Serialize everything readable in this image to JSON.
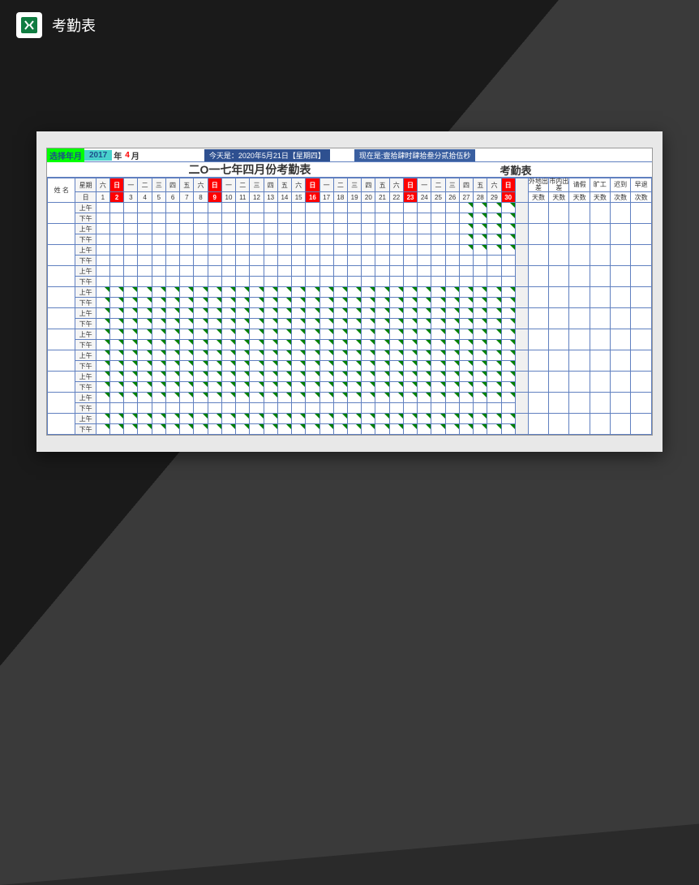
{
  "header": {
    "title": "考勤表"
  },
  "topbar": {
    "select_label": "选择年月",
    "year": "2017",
    "year_suffix": "年",
    "month": "4",
    "month_suffix": "月",
    "today": "今天是：2020年5月21日【星期四】",
    "now": "现在是:壹拾肆时肆拾叁分贰拾伍秒"
  },
  "titles": {
    "main": "二O一七年四月份考勤表",
    "sub": "考勤表"
  },
  "grid": {
    "name_header": "姓 名",
    "week_header": "星期",
    "day_header": "日",
    "weekdays": [
      "六",
      "日",
      "一",
      "二",
      "三",
      "四",
      "五",
      "六",
      "日",
      "一",
      "二",
      "三",
      "四",
      "五",
      "六",
      "日",
      "一",
      "二",
      "三",
      "四",
      "五",
      "六",
      "日",
      "一",
      "二",
      "三",
      "四",
      "五",
      "六",
      "日"
    ],
    "days": [
      1,
      2,
      3,
      4,
      5,
      6,
      7,
      8,
      9,
      10,
      11,
      12,
      13,
      14,
      15,
      16,
      17,
      18,
      19,
      20,
      21,
      22,
      23,
      24,
      25,
      26,
      27,
      28,
      29,
      30
    ],
    "sundays": [
      2,
      9,
      16,
      23,
      30
    ],
    "period_am": "上午",
    "period_pm": "下午",
    "summary_headers": [
      "外地出差",
      "市内出差",
      "请假",
      "旷工",
      "迟到",
      "早退"
    ],
    "summary_sub": [
      "天数",
      "天数",
      "天数",
      "天数",
      "次数",
      "次数"
    ],
    "rows": [
      {
        "am_fill": "last4",
        "pm_fill": "last4"
      },
      {
        "am_fill": "last4",
        "pm_fill": "last4"
      },
      {
        "am_fill": "last4",
        "pm_fill": "none"
      },
      {
        "am_fill": "none",
        "pm_fill": "none"
      },
      {
        "am_fill": "all",
        "pm_fill": "all"
      },
      {
        "am_fill": "all",
        "pm_fill": "all"
      },
      {
        "am_fill": "all",
        "pm_fill": "all"
      },
      {
        "am_fill": "all",
        "pm_fill": "all"
      },
      {
        "am_fill": "all",
        "pm_fill": "all"
      },
      {
        "am_fill": "all",
        "pm_fill": "none"
      },
      {
        "am_fill": "all",
        "pm_fill": "all"
      }
    ]
  },
  "colors": {
    "sunday_bg": "#ff0000",
    "grid_line": "#6080c0",
    "check_mark": "#008000",
    "year_bg": "#48d1cc",
    "label_bg": "#00ff00"
  }
}
